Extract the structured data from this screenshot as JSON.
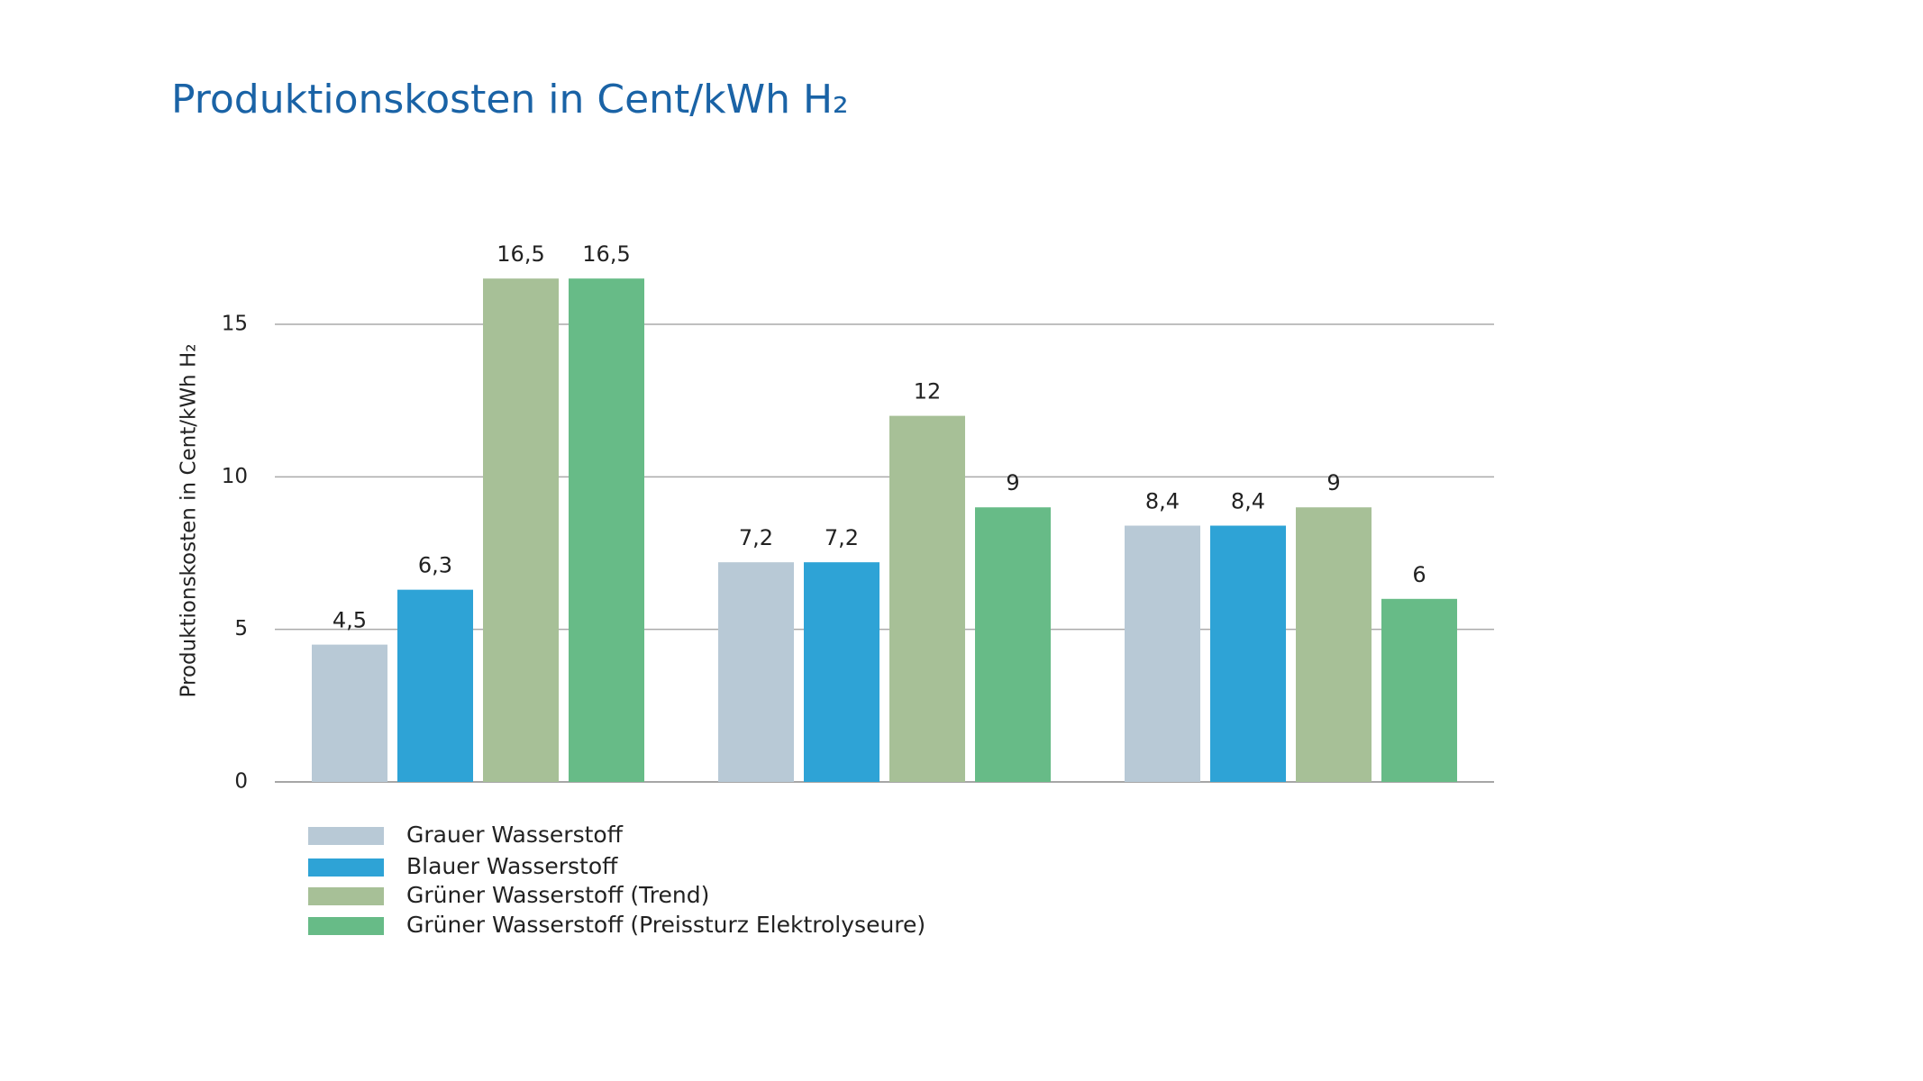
{
  "chart_data": {
    "type": "bar",
    "title": "Produktionskosten in Cent/kWh H₂",
    "y_label": "Produktionskosten in Cent/kWh H₂",
    "categories": [
      null,
      null,
      null
    ],
    "series": [
      {
        "name": "Grauer Wasserstoff",
        "color": "#b8c9d6",
        "values": [
          4.5,
          7.2,
          8.4
        ],
        "value_labels": [
          "4,5",
          "7,2",
          "8,4"
        ]
      },
      {
        "name": "Blauer Wasserstoff",
        "color": "#2ea3d6",
        "values": [
          6.3,
          7.2,
          8.4
        ],
        "value_labels": [
          "6,3",
          "7,2",
          "8,4"
        ]
      },
      {
        "name": "Grüner Wasserstoff (Trend)",
        "color": "#a7c097",
        "values": [
          16.5,
          12,
          9
        ],
        "value_labels": [
          "16,5",
          "12",
          "9"
        ]
      },
      {
        "name": "Grüner Wasserstoff (Preissturz Elektrolyseure)",
        "color": "#67bb87",
        "values": [
          16.5,
          9,
          6
        ],
        "value_labels": [
          "16,5",
          "9",
          "6"
        ]
      }
    ],
    "ylim": [
      0,
      15
    ],
    "yticks": [
      0,
      5,
      10,
      15
    ],
    "grid": true
  }
}
